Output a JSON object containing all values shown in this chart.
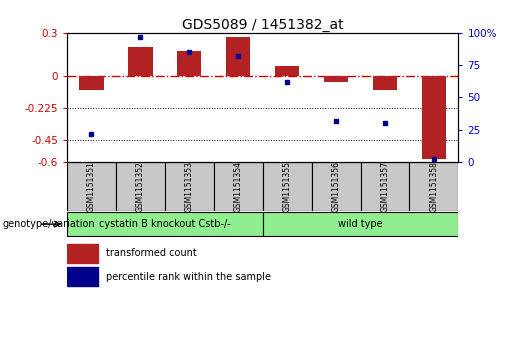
{
  "title": "GDS5089 / 1451382_at",
  "samples": [
    "GSM1151351",
    "GSM1151352",
    "GSM1151353",
    "GSM1151354",
    "GSM1151355",
    "GSM1151356",
    "GSM1151357",
    "GSM1151358"
  ],
  "transformed_count": [
    -0.1,
    0.2,
    0.17,
    0.27,
    0.07,
    -0.04,
    -0.1,
    -0.58
  ],
  "percentile_rank": [
    22,
    97,
    85,
    82,
    62,
    32,
    30,
    2
  ],
  "ylim_left": [
    -0.6,
    0.3
  ],
  "yticks_left": [
    -0.6,
    -0.45,
    -0.225,
    0,
    0.3
  ],
  "ytick_labels_left": [
    "-0.6",
    "-0.45",
    "-0.225",
    "0",
    "0.3"
  ],
  "ylim_right": [
    0,
    100
  ],
  "yticks_right": [
    0,
    25,
    50,
    75,
    100
  ],
  "ytick_labels_right": [
    "0",
    "25",
    "50",
    "75",
    "100%"
  ],
  "bar_color": "#B22222",
  "dot_color": "#00008B",
  "zero_line_color": "#CC0000",
  "dotted_line_color": "#000000",
  "hline_y": [
    0,
    -0.225,
    -0.45
  ],
  "hline_styles": [
    "dashdot",
    "dotted",
    "dotted"
  ],
  "group1_label": "cystatin B knockout Cstb-/-",
  "group2_label": "wild type",
  "group1_indices": [
    0,
    1,
    2,
    3
  ],
  "group2_indices": [
    4,
    5,
    6,
    7
  ],
  "group_color": "#90EE90",
  "sample_box_color": "#C8C8C8",
  "genotype_label": "genotype/variation",
  "legend_labels": [
    "transformed count",
    "percentile rank within the sample"
  ],
  "bar_width": 0.5,
  "title_fontsize": 10
}
